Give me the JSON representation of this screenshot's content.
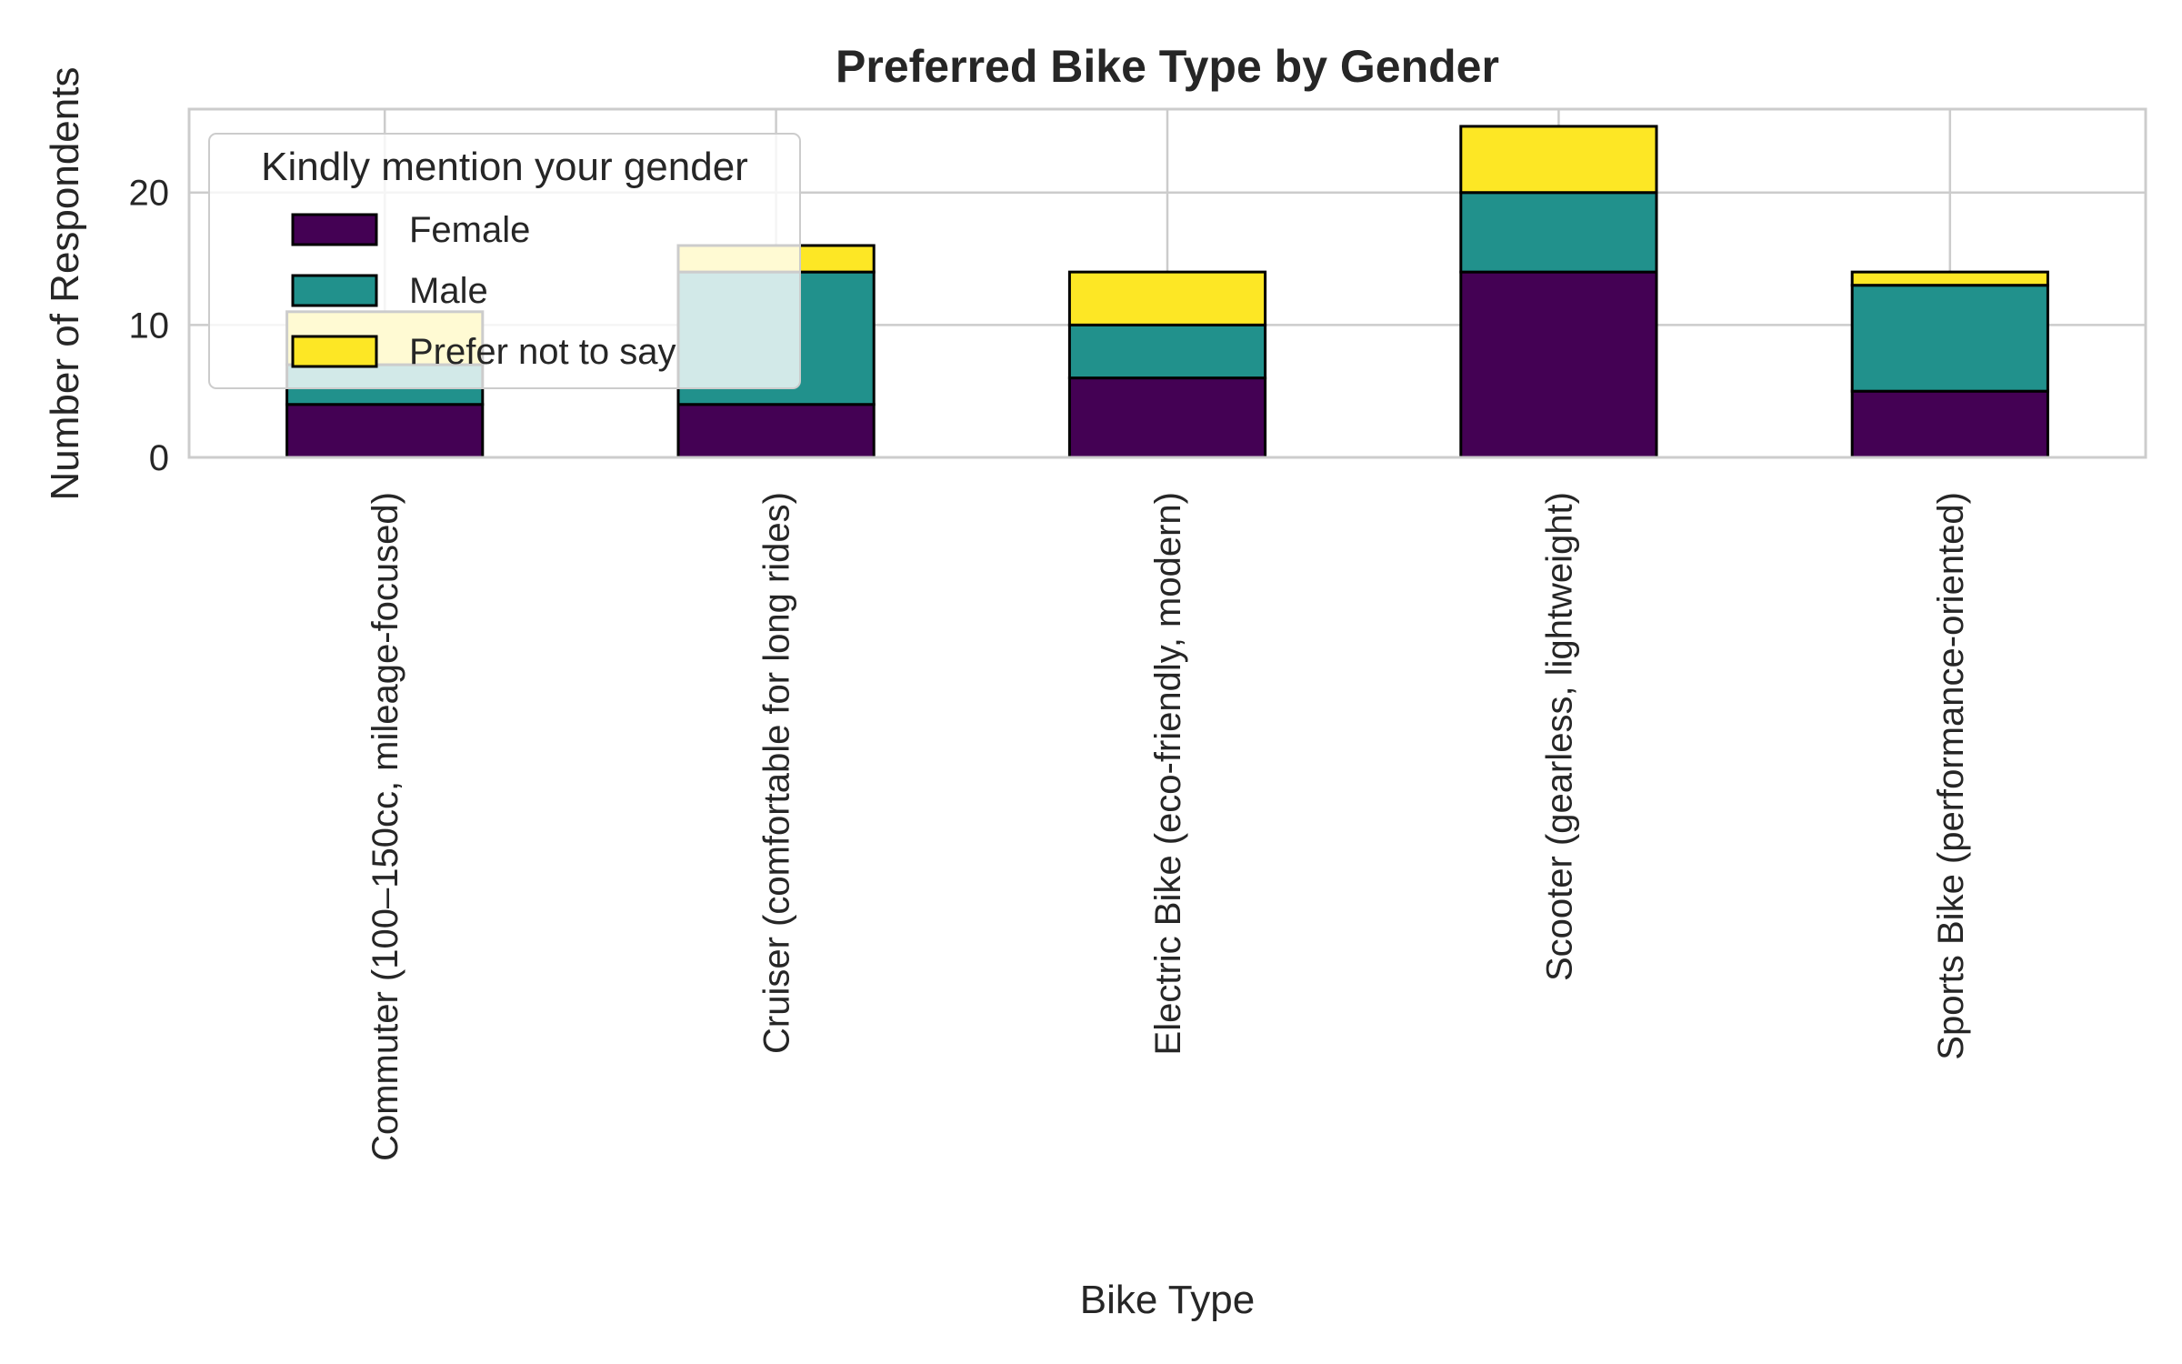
{
  "chart_data": {
    "type": "bar",
    "stacked": true,
    "title": "Preferred Bike Type by Gender",
    "xlabel": "Bike Type",
    "ylabel": "Number of Respondents",
    "ylim": [
      0,
      26.3
    ],
    "yticks": [
      0,
      10,
      20
    ],
    "grid": true,
    "legend_placement": "upper-left",
    "legend_title": "Kindly mention your gender",
    "categories": [
      "Commuter (100–150cc, mileage-focused)",
      "Cruiser (comfortable for long rides)",
      "Electric Bike (eco-friendly, modern)",
      "Scooter (gearless, lightweight)",
      "Sports Bike (performance-oriented)"
    ],
    "series": [
      {
        "name": "Female",
        "color": "#440154",
        "values": [
          4,
          4,
          6,
          14,
          5
        ]
      },
      {
        "name": "Male",
        "color": "#21918c",
        "values": [
          3,
          10,
          4,
          6,
          8
        ]
      },
      {
        "name": "Prefer not to say",
        "color": "#fde725",
        "values": [
          4,
          2,
          4,
          5,
          1
        ]
      }
    ]
  }
}
